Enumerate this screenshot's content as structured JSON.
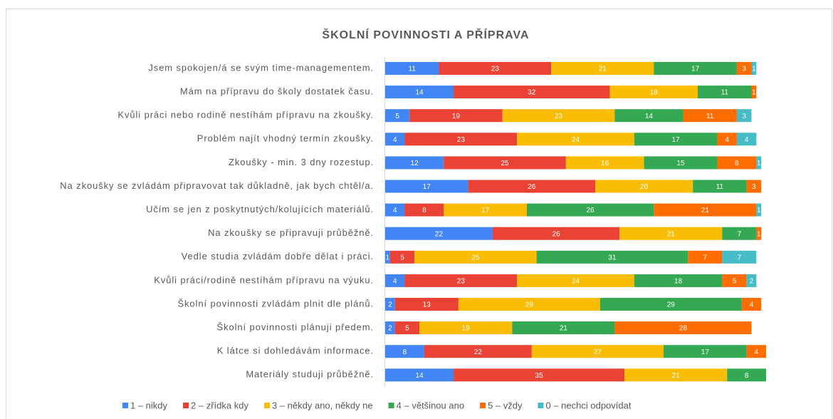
{
  "chart_data": {
    "type": "stacked-bar-horizontal",
    "title": "ŠKOLNÍ POVINNOSTI A PŘÍPRAVA",
    "categories": [
      "Jsem spokojen/á se svým time-managementem.",
      "Mám na přípravu do školy dostatek času.",
      "Kvůli práci nebo rodině nestíhám přípravu na zkoušky.",
      "Problém najít vhodný termín zkoušky.",
      "Zkoušky - min. 3 dny rozestup.",
      "Na zkoušky se zvládám připravovat tak důkladně, jak bych chtěl/a.",
      "Učím se jen z poskytnutých/kolujících materiálů.",
      "Na zkoušky se připravuji průběžně.",
      "Vedle studia zvládám dobře dělat i práci.",
      "Kvůli práci/rodině nestíhám přípravu na výuku.",
      "Školní povinnosti zvládám plnit dle plánů.",
      "Školní povinnosti plánuji předem.",
      "K látce si dohledávám informace.",
      "Materiály studuji průběžně."
    ],
    "series": [
      {
        "name": "1 – nikdy",
        "color": "#4285f4",
        "values": [
          11,
          14,
          5,
          4,
          12,
          17,
          4,
          22,
          1,
          4,
          2,
          2,
          8,
          14
        ]
      },
      {
        "name": "2 – zřídka kdy",
        "color": "#ea4335",
        "values": [
          23,
          32,
          19,
          23,
          25,
          26,
          8,
          26,
          5,
          23,
          13,
          5,
          22,
          35
        ]
      },
      {
        "name": "3 – někdy ano, někdy ne",
        "color": "#fbbc04",
        "values": [
          21,
          18,
          23,
          24,
          16,
          20,
          17,
          21,
          25,
          24,
          29,
          19,
          27,
          21
        ]
      },
      {
        "name": "4 – většinou ano",
        "color": "#34a853",
        "values": [
          17,
          11,
          14,
          17,
          15,
          11,
          26,
          7,
          31,
          18,
          29,
          21,
          17,
          8
        ]
      },
      {
        "name": "5 – vždy",
        "color": "#ff6d01",
        "values": [
          3,
          1,
          11,
          4,
          8,
          3,
          21,
          1,
          7,
          5,
          4,
          28,
          4,
          0
        ]
      },
      {
        "name": "0 – nechci odpovídat",
        "color": "#46bdc6",
        "values": [
          1,
          0,
          3,
          4,
          1,
          0,
          1,
          0,
          7,
          2,
          0,
          0,
          0,
          0
        ]
      }
    ],
    "legend": "bottom"
  }
}
